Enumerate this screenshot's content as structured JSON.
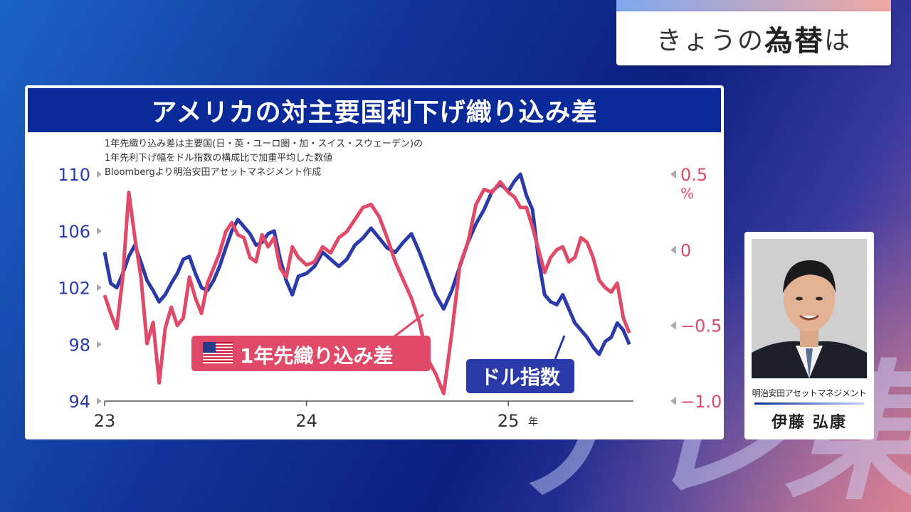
{
  "topic": {
    "prefix": "きょうの",
    "strong": "為替",
    "suffix": "は"
  },
  "chart_data": {
    "type": "line",
    "title": "アメリカの対主要国利下げ織り込み差",
    "notes": [
      "1年先織り込み差は主要国(日・英・ユーロ圏・加・スイス・スウェーデン)の",
      "1年先利下げ幅をドル指数の構成比で加重平均した数値",
      "Bloombergより明治安田アセットマネジメント作成"
    ],
    "x_tick_labels": [
      "23",
      "24",
      "25"
    ],
    "x_unit": "年",
    "x_range": [
      2023.0,
      2025.62
    ],
    "y_left": {
      "range": [
        94,
        110
      ],
      "ticks": [
        "110",
        "106",
        "102",
        "98",
        "94"
      ],
      "color": "#2a3aa8"
    },
    "y_right": {
      "range": [
        -1.0,
        0.5
      ],
      "ticks": [
        "0.5",
        "0",
        "−0.5",
        "−1.0"
      ],
      "unit": "%",
      "color": "#e04a68"
    },
    "series": [
      {
        "name": "ドル指数",
        "axis": "left",
        "color": "#2a3aa8",
        "x": [
          2023.0,
          2023.03,
          2023.06,
          2023.09,
          2023.12,
          2023.15,
          2023.18,
          2023.21,
          2023.24,
          2023.27,
          2023.3,
          2023.33,
          2023.36,
          2023.39,
          2023.42,
          2023.45,
          2023.48,
          2023.51,
          2023.54,
          2023.57,
          2023.6,
          2023.63,
          2023.66,
          2023.69,
          2023.72,
          2023.75,
          2023.78,
          2023.81,
          2023.84,
          2023.87,
          2023.9,
          2023.93,
          2023.96,
          2024.0,
          2024.04,
          2024.08,
          2024.12,
          2024.16,
          2024.2,
          2024.24,
          2024.28,
          2024.32,
          2024.36,
          2024.4,
          2024.44,
          2024.48,
          2024.52,
          2024.56,
          2024.6,
          2024.64,
          2024.68,
          2024.72,
          2024.76,
          2024.8,
          2024.84,
          2024.88,
          2024.92,
          2024.96,
          2025.0,
          2025.03,
          2025.06,
          2025.09,
          2025.12,
          2025.15,
          2025.18,
          2025.21,
          2025.24,
          2025.27,
          2025.3,
          2025.33,
          2025.36,
          2025.39,
          2025.42,
          2025.45,
          2025.48,
          2025.51,
          2025.54,
          2025.57,
          2025.6
        ],
        "values": [
          104.5,
          102.3,
          102.0,
          103.0,
          104.2,
          105.0,
          103.8,
          102.5,
          101.8,
          101.0,
          101.5,
          102.3,
          103.0,
          104.0,
          104.2,
          103.0,
          102.0,
          101.8,
          102.5,
          103.5,
          104.8,
          106.0,
          106.8,
          106.3,
          105.8,
          105.0,
          105.2,
          105.8,
          106.0,
          104.0,
          102.5,
          101.5,
          102.8,
          103.0,
          103.5,
          104.5,
          104.0,
          103.5,
          104.0,
          105.0,
          105.5,
          106.2,
          105.5,
          104.8,
          104.5,
          105.2,
          105.8,
          104.5,
          103.0,
          101.5,
          100.5,
          101.8,
          103.5,
          105.2,
          106.5,
          107.5,
          108.8,
          109.3,
          108.8,
          109.5,
          110.0,
          108.5,
          107.5,
          104.0,
          101.5,
          101.0,
          100.8,
          101.5,
          100.5,
          99.5,
          99.0,
          98.5,
          97.8,
          97.3,
          98.2,
          98.5,
          99.5,
          99.0,
          98.0
        ]
      },
      {
        "name": "1年先織り込み差",
        "axis": "right",
        "color": "#e04a68",
        "x": [
          2023.0,
          2023.03,
          2023.06,
          2023.09,
          2023.12,
          2023.15,
          2023.18,
          2023.21,
          2023.24,
          2023.27,
          2023.3,
          2023.33,
          2023.36,
          2023.39,
          2023.42,
          2023.45,
          2023.48,
          2023.51,
          2023.54,
          2023.57,
          2023.6,
          2023.63,
          2023.66,
          2023.69,
          2023.72,
          2023.75,
          2023.78,
          2023.81,
          2023.84,
          2023.87,
          2023.9,
          2023.93,
          2023.96,
          2024.0,
          2024.04,
          2024.08,
          2024.12,
          2024.16,
          2024.2,
          2024.24,
          2024.28,
          2024.32,
          2024.36,
          2024.4,
          2024.44,
          2024.48,
          2024.52,
          2024.56,
          2024.6,
          2024.64,
          2024.68,
          2024.72,
          2024.76,
          2024.8,
          2024.84,
          2024.88,
          2024.92,
          2024.96,
          2025.0,
          2025.03,
          2025.06,
          2025.09,
          2025.12,
          2025.15,
          2025.18,
          2025.21,
          2025.24,
          2025.27,
          2025.3,
          2025.33,
          2025.36,
          2025.39,
          2025.42,
          2025.45,
          2025.48,
          2025.51,
          2025.54,
          2025.57,
          2025.6
        ],
        "values": [
          -0.3,
          -0.42,
          -0.52,
          -0.18,
          0.38,
          0.08,
          -0.18,
          -0.62,
          -0.48,
          -0.88,
          -0.52,
          -0.38,
          -0.5,
          -0.45,
          -0.18,
          -0.32,
          -0.42,
          -0.22,
          -0.12,
          -0.02,
          0.12,
          0.18,
          0.1,
          0.08,
          -0.05,
          -0.08,
          0.1,
          0.02,
          0.08,
          -0.12,
          -0.18,
          0.02,
          -0.05,
          -0.1,
          -0.08,
          0.02,
          -0.02,
          0.08,
          0.12,
          0.2,
          0.28,
          0.3,
          0.22,
          0.08,
          -0.08,
          -0.2,
          -0.32,
          -0.48,
          -0.72,
          -0.82,
          -0.95,
          -0.55,
          -0.1,
          0.05,
          0.3,
          0.4,
          0.38,
          0.45,
          0.38,
          0.35,
          0.28,
          0.28,
          0.15,
          0.0,
          -0.15,
          -0.05,
          0.0,
          0.02,
          -0.08,
          -0.05,
          0.08,
          0.05,
          -0.05,
          -0.2,
          -0.25,
          -0.28,
          -0.22,
          -0.45,
          -0.55
        ]
      }
    ],
    "labels": {
      "series_red": "1年先織り込み差",
      "series_blue": "ドル指数"
    }
  },
  "person": {
    "org": "明治安田アセットマネジメント",
    "name": "伊藤 弘康"
  },
  "watermark": "テレ東"
}
